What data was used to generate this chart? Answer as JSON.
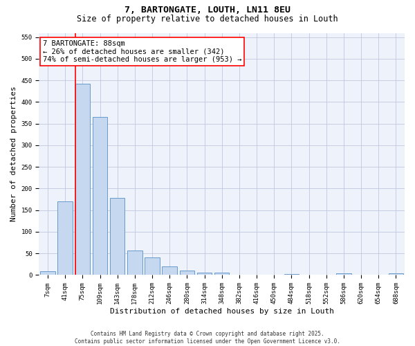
{
  "title1": "7, BARTONGATE, LOUTH, LN11 8EU",
  "title2": "Size of property relative to detached houses in Louth",
  "xlabel": "Distribution of detached houses by size in Louth",
  "ylabel": "Number of detached properties",
  "categories": [
    "7sqm",
    "41sqm",
    "75sqm",
    "109sqm",
    "143sqm",
    "178sqm",
    "212sqm",
    "246sqm",
    "280sqm",
    "314sqm",
    "348sqm",
    "382sqm",
    "416sqm",
    "450sqm",
    "484sqm",
    "518sqm",
    "552sqm",
    "586sqm",
    "620sqm",
    "654sqm",
    "688sqm"
  ],
  "values": [
    8,
    170,
    443,
    365,
    178,
    57,
    40,
    20,
    10,
    6,
    5,
    0,
    0,
    0,
    3,
    0,
    0,
    4,
    0,
    0,
    4
  ],
  "bar_color": "#c5d8f0",
  "bar_edge_color": "#6699cc",
  "vline_color": "red",
  "annotation_text": "7 BARTONGATE: 88sqm\n← 26% of detached houses are smaller (342)\n74% of semi-detached houses are larger (953) →",
  "annotation_box_color": "white",
  "annotation_box_edge": "red",
  "ylim": [
    0,
    560
  ],
  "yticks": [
    0,
    50,
    100,
    150,
    200,
    250,
    300,
    350,
    400,
    450,
    500,
    550
  ],
  "bg_color": "#eef2fb",
  "grid_color": "#c0c8dc",
  "footer": "Contains HM Land Registry data © Crown copyright and database right 2025.\nContains public sector information licensed under the Open Government Licence v3.0.",
  "title_fontsize": 9.5,
  "subtitle_fontsize": 8.5,
  "tick_fontsize": 6.5,
  "ylabel_fontsize": 8,
  "xlabel_fontsize": 8,
  "annotation_fontsize": 7.5,
  "footer_fontsize": 5.5
}
